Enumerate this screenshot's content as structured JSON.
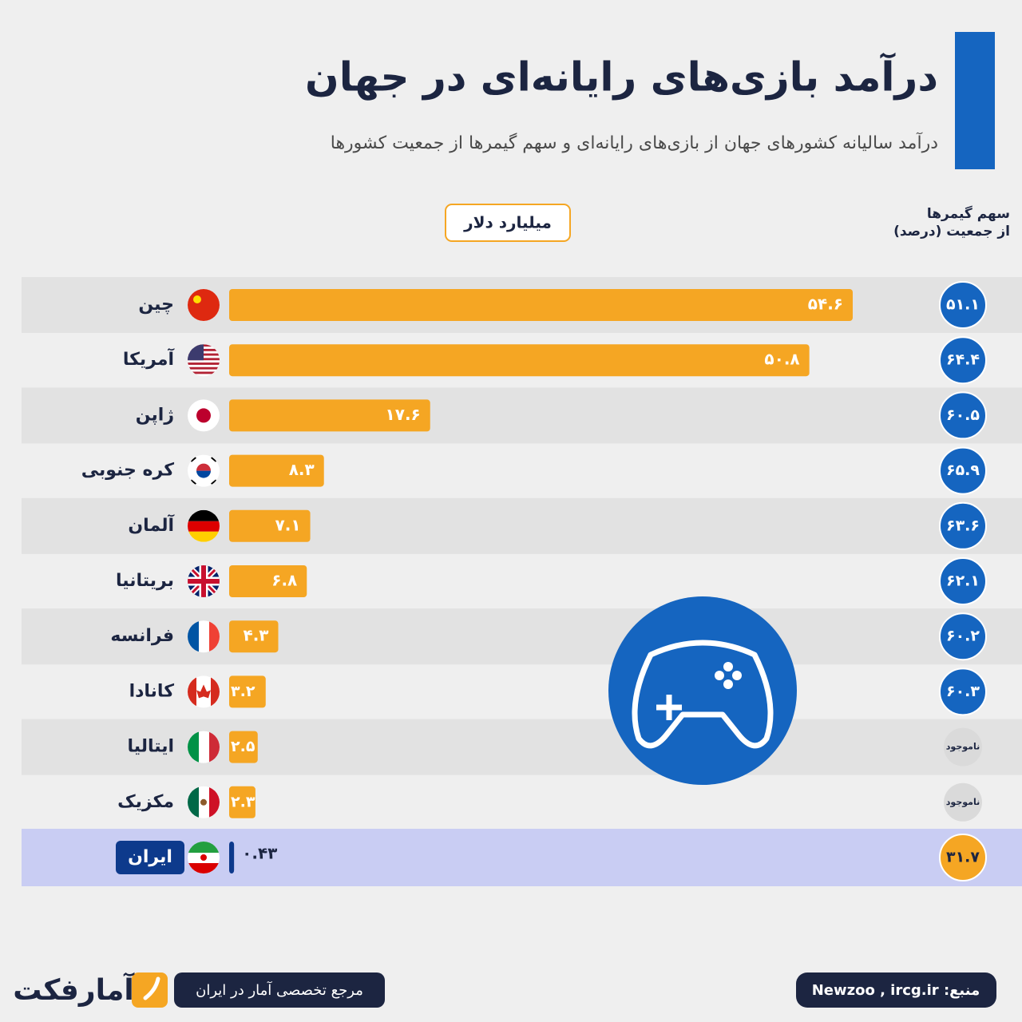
{
  "chart_data": {
    "type": "bar",
    "title": "درآمد بازی‌های رایانه‌ای در جهان",
    "subtitle": "درآمد سالیانه کشورهای جهان از بازی‌های رایانه‌ای و سهم گیمرها از جمعیت کشورها",
    "categories": [
      "چین",
      "آمریکا",
      "ژاپن",
      "کره جنوبی",
      "آلمان",
      "بریتانیا",
      "فرانسه",
      "کانادا",
      "ایتالیا",
      "مکزیک",
      "ایران"
    ],
    "series": [
      {
        "name": "میلیارد دلار",
        "color": "#f5a623",
        "values": [
          54.6,
          50.8,
          17.6,
          8.3,
          7.1,
          6.8,
          4.3,
          3.2,
          2.5,
          2.3,
          0.43
        ],
        "value_labels": [
          "۵۴.۶",
          "۵۰.۸",
          "۱۷.۶",
          "۸.۳",
          "۷.۱",
          "۶.۸",
          "۴.۳",
          "۳.۲",
          "۲.۵",
          "۲.۳",
          "۰.۴۳"
        ]
      }
    ],
    "share": {
      "title": [
        "سهم گیمرها",
        "از جمعیت (درصد)"
      ],
      "color": "#1565c0",
      "missing_color": "#dadada",
      "values": [
        51.1,
        64.4,
        60.5,
        65.9,
        63.6,
        62.1,
        60.2,
        60.3,
        null,
        null,
        31.7
      ],
      "value_labels": [
        "۵۱.۱",
        "۶۴.۴",
        "۶۰.۵",
        "۶۵.۹",
        "۶۳.۶",
        "۶۲.۱",
        "۶۰.۲",
        "۶۰.۳",
        "ناموجود",
        "ناموجود",
        "۳۱.۷"
      ]
    },
    "highlight": {
      "index": 10,
      "row_color": "#c9cdf3",
      "share_color": "#f5a623",
      "bar_color": "#0d3a8c"
    },
    "footer": {
      "tagline": "مرجع تخصصی آمار در ایران",
      "source": "منبع: Newzoo , ircg.ir",
      "logo": "آمارفکت"
    }
  }
}
